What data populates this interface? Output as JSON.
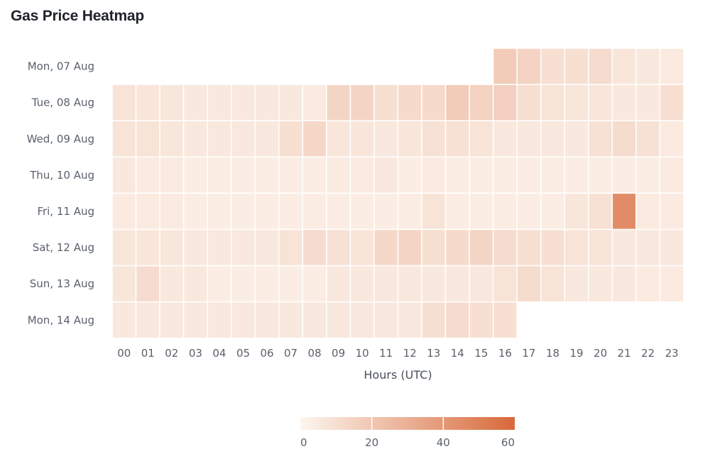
{
  "header": {
    "title": "Gas Price Heatmap"
  },
  "colors": {
    "low": "#fdf6ef",
    "high": "#d8693a",
    "grid_line": "#ffffff"
  },
  "chart_data": {
    "type": "heatmap",
    "title": "Gas Price Heatmap",
    "xlabel": "Hours (UTC)",
    "ylabel": "",
    "x": [
      "00",
      "01",
      "02",
      "03",
      "04",
      "05",
      "06",
      "07",
      "08",
      "09",
      "10",
      "11",
      "12",
      "13",
      "14",
      "15",
      "16",
      "17",
      "18",
      "19",
      "20",
      "21",
      "22",
      "23"
    ],
    "y": [
      "Mon, 07 Aug",
      "Tue, 08 Aug",
      "Wed, 09 Aug",
      "Thu, 10 Aug",
      "Fri, 11 Aug",
      "Sat, 12 Aug",
      "Sun, 13 Aug",
      "Mon, 14 Aug"
    ],
    "values": [
      [
        null,
        null,
        null,
        null,
        null,
        null,
        null,
        null,
        null,
        null,
        null,
        null,
        null,
        null,
        null,
        null,
        18,
        15,
        10,
        10,
        11,
        7,
        6,
        5
      ],
      [
        8,
        7,
        7,
        6,
        6,
        6,
        6,
        6,
        5,
        14,
        14,
        10,
        12,
        12,
        18,
        15,
        16,
        10,
        8,
        7,
        7,
        6,
        6,
        10
      ],
      [
        8,
        8,
        7,
        6,
        6,
        6,
        6,
        10,
        13,
        7,
        7,
        6,
        7,
        9,
        9,
        8,
        6,
        6,
        6,
        6,
        9,
        11,
        9,
        5
      ],
      [
        6,
        5,
        5,
        4,
        4,
        4,
        4,
        4,
        4,
        5,
        5,
        6,
        4,
        5,
        4,
        4,
        4,
        4,
        4,
        4,
        4,
        4,
        4,
        5
      ],
      [
        5,
        5,
        5,
        4,
        4,
        4,
        4,
        4,
        4,
        4,
        4,
        4,
        4,
        8,
        4,
        4,
        4,
        4,
        4,
        7,
        9,
        45,
        5,
        5
      ],
      [
        7,
        7,
        7,
        6,
        6,
        6,
        6,
        8,
        11,
        9,
        8,
        13,
        14,
        10,
        12,
        14,
        11,
        10,
        10,
        8,
        8,
        6,
        6,
        6
      ],
      [
        7,
        11,
        6,
        6,
        4,
        4,
        4,
        4,
        4,
        6,
        6,
        6,
        6,
        6,
        6,
        6,
        8,
        11,
        8,
        6,
        6,
        6,
        5,
        5
      ],
      [
        6,
        6,
        6,
        6,
        6,
        6,
        6,
        6,
        6,
        6,
        6,
        6,
        6,
        10,
        11,
        10,
        10,
        null,
        null,
        null,
        null,
        null,
        null,
        null
      ]
    ],
    "color_scale": {
      "min": 0,
      "max": 60,
      "ticks": [
        0,
        20,
        40,
        60
      ]
    },
    "grid": false
  }
}
